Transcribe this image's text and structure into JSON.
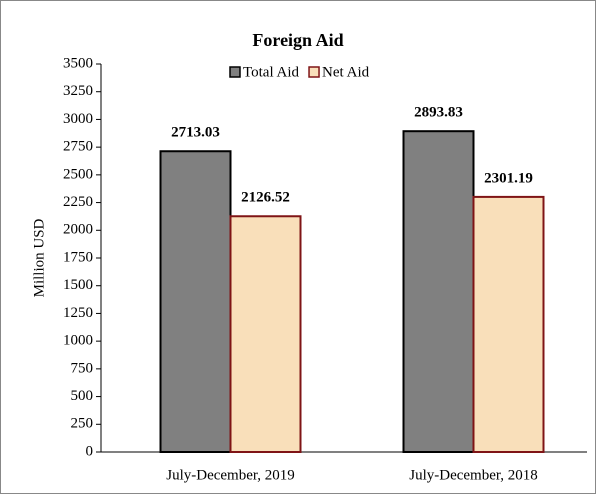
{
  "chart_data": {
    "type": "bar",
    "title": "Foreign Aid",
    "y_label": "Million USD",
    "categories": [
      "July-December, 2019",
      "July-December, 2018"
    ],
    "series": [
      {
        "name": "Total Aid",
        "color": "#808080",
        "stroke": "#000000",
        "values": [
          2713.03,
          2893.83
        ]
      },
      {
        "name": "Net Aid",
        "color": "#f9dfba",
        "stroke": "#7f1416",
        "values": [
          2126.52,
          2301.19
        ]
      }
    ],
    "ylim": [
      0,
      3500
    ],
    "yticks": [
      0,
      250,
      500,
      750,
      1000,
      1250,
      1500,
      1750,
      2000,
      2250,
      2500,
      2750,
      3000,
      3250,
      3500
    ],
    "legend": "top"
  }
}
